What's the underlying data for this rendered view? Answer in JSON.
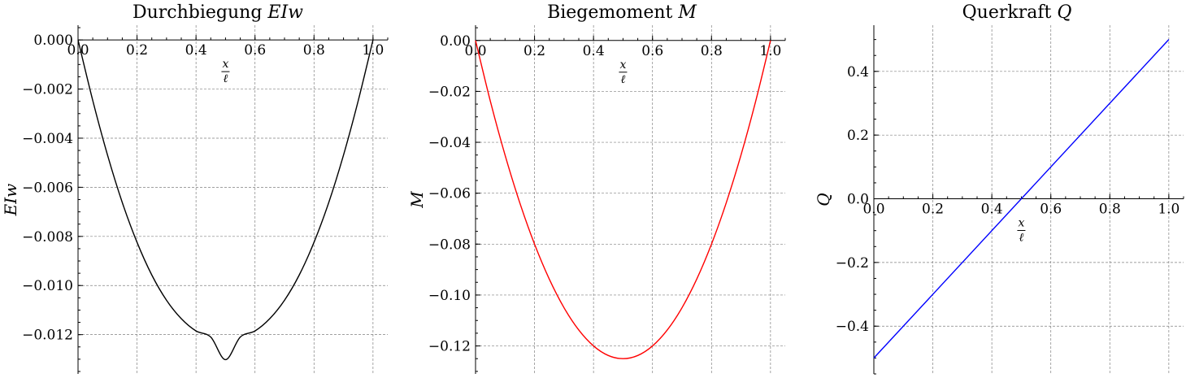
{
  "chart_data": [
    {
      "type": "line",
      "title": "Durchbiegung ",
      "title_math": "EIw",
      "xlabel_num": "x",
      "xlabel_den": "ℓ",
      "ylabel": "EIw",
      "xlim": [
        0.0,
        1.05
      ],
      "ylim": [
        -0.0136,
        0.0006
      ],
      "xticks": [
        0.0,
        0.2,
        0.4,
        0.6,
        0.8,
        1.0
      ],
      "xtick_labels": [
        "0.0",
        "0.2",
        "0.4",
        "0.6",
        "0.8",
        "1.0"
      ],
      "yticks": [
        0.0,
        -0.002,
        -0.004,
        -0.006,
        -0.008,
        -0.01,
        -0.012
      ],
      "ytick_labels": [
        "0.000",
        "−0.002",
        "−0.004",
        "−0.006",
        "−0.008",
        "−0.010",
        "−0.012"
      ],
      "grid": true,
      "color": "#000000",
      "series": [
        {
          "x": [
            0.0,
            0.05,
            0.1,
            0.15,
            0.2,
            0.25,
            0.3,
            0.35,
            0.4,
            0.45,
            0.5,
            0.55,
            0.6,
            0.65,
            0.7,
            0.75,
            0.8,
            0.85,
            0.9,
            0.95,
            1.0
          ],
          "y": [
            0.0,
            -0.00247,
            -0.00469,
            -0.00662,
            -0.00824,
            -0.00957,
            -0.0106,
            -0.01135,
            -0.01185,
            -0.0121,
            -0.01302,
            -0.0121,
            -0.01185,
            -0.01135,
            -0.0106,
            -0.00957,
            -0.00824,
            -0.00662,
            -0.00469,
            -0.00247,
            0.0
          ]
        }
      ]
    },
    {
      "type": "line",
      "title": "Biegemoment ",
      "title_math": "M",
      "xlabel_num": "x",
      "xlabel_den": "ℓ",
      "ylabel": "M",
      "xlim": [
        0.0,
        1.05
      ],
      "ylim": [
        -0.131,
        0.006
      ],
      "xticks": [
        0.0,
        0.2,
        0.4,
        0.6,
        0.8,
        1.0
      ],
      "xtick_labels": [
        "0.0",
        "0.2",
        "0.4",
        "0.6",
        "0.8",
        "1.0"
      ],
      "yticks": [
        0.0,
        -0.02,
        -0.04,
        -0.06,
        -0.08,
        -0.1,
        -0.12
      ],
      "ytick_labels": [
        "0.00",
        "−0.02",
        "−0.04",
        "−0.06",
        "−0.08",
        "−0.10",
        "−0.12"
      ],
      "grid": true,
      "color": "#ff0000",
      "series": [
        {
          "x": [
            0.0,
            0.05,
            0.1,
            0.15,
            0.2,
            0.25,
            0.3,
            0.35,
            0.4,
            0.45,
            0.5,
            0.55,
            0.6,
            0.65,
            0.7,
            0.75,
            0.8,
            0.85,
            0.9,
            0.95,
            1.0
          ],
          "y": [
            0.0,
            -0.02375,
            -0.045,
            -0.06375,
            -0.08,
            -0.09375,
            -0.105,
            -0.11375,
            -0.12,
            -0.12375,
            -0.125,
            -0.12375,
            -0.12,
            -0.11375,
            -0.105,
            -0.09375,
            -0.08,
            -0.06375,
            -0.045,
            -0.02375,
            0.0
          ]
        }
      ]
    },
    {
      "type": "line",
      "title": "Querkraft ",
      "title_math": "Q",
      "xlabel_num": "x",
      "xlabel_den": "ℓ",
      "ylabel": "Q",
      "xlim": [
        0.0,
        1.05
      ],
      "ylim": [
        -0.55,
        0.545
      ],
      "xticks": [
        0.0,
        0.2,
        0.4,
        0.6,
        0.8,
        1.0
      ],
      "xtick_labels": [
        "0.0",
        "0.2",
        "0.4",
        "0.6",
        "0.8",
        "1.0"
      ],
      "yticks": [
        0.4,
        0.2,
        0.0,
        -0.2,
        -0.4
      ],
      "ytick_labels": [
        "0.4",
        "0.2",
        "0.0",
        "−0.2",
        "−0.4"
      ],
      "grid": true,
      "color": "#0000ff",
      "series": [
        {
          "x": [
            0.0,
            1.0
          ],
          "y": [
            -0.5,
            0.5
          ]
        }
      ]
    }
  ]
}
